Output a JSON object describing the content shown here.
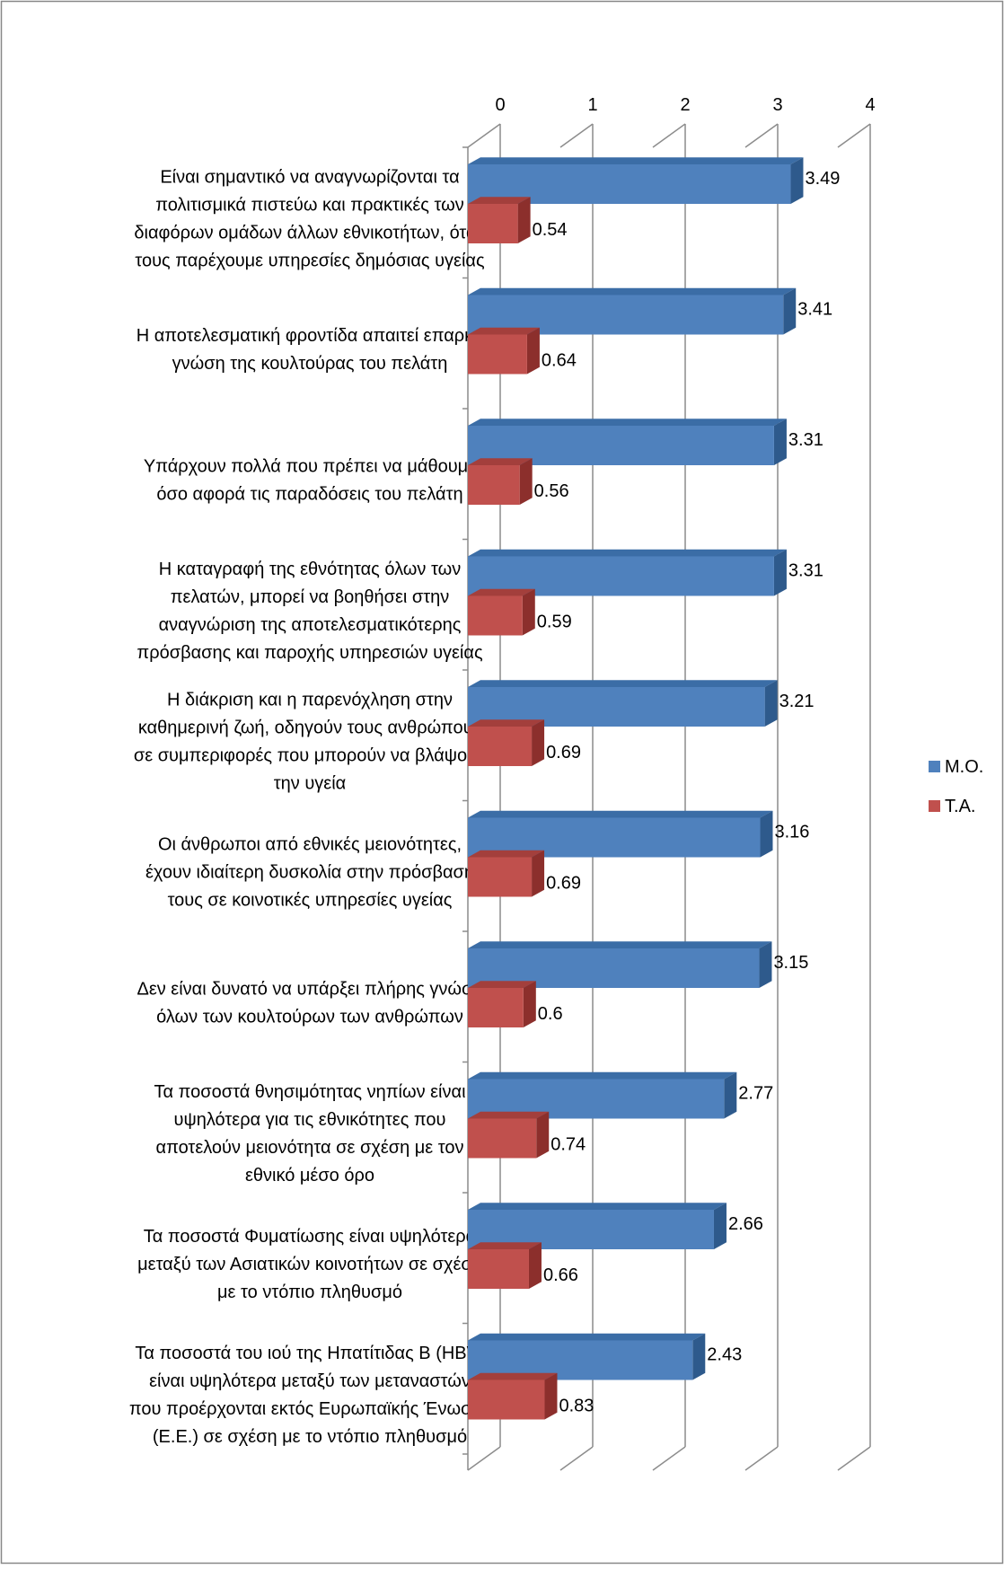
{
  "chart_data": {
    "type": "bar",
    "orientation": "horizontal",
    "style": "3d",
    "title": "",
    "xlabel": "",
    "ylabel": "",
    "xlim": [
      0,
      4
    ],
    "ticks": [
      "0",
      "1",
      "2",
      "3",
      "4"
    ],
    "grid": true,
    "legend_position": "right",
    "categories": [
      "Είναι σημαντικό να αναγνωρίζονται τα πολιτισμικά πιστεύω και πρακτικές των διαφόρων ομάδων άλλων εθνικοτήτων, όταν τους παρέχουμε υπηρεσίες δημόσιας υγείας",
      "Η αποτελεσματική φροντίδα απαιτεί επαρκή γνώση της κουλτούρας του πελάτη",
      "Υπάρχουν πολλά που πρέπει να μάθουμε όσο αφορά τις παραδόσεις του πελάτη",
      "Η καταγραφή της εθνότητας όλων των πελατών, μπορεί να βοηθήσει στην αναγνώριση της αποτελεσματικότερης πρόσβασης και παροχής υπηρεσιών υγείας",
      "Η διάκριση και η παρενόχληση στην καθημερινή ζωή, οδηγούν τους ανθρώπους σε συμπεριφορές που μπορούν να βλάψουν την υγεία",
      "Οι άνθρωποι από εθνικές μειονότητες, έχουν ιδιαίτερη δυσκολία στην πρόσβασή τους σε κοινοτικές υπηρεσίες υγείας",
      "Δεν είναι δυνατό να υπάρξει πλήρης γνώση όλων των κουλτούρων των ανθρώπων",
      "Τα ποσοστά θνησιμότητας νηπίων είναι υψηλότερα για τις εθνικότητες που αποτελούν  μειονότητα σε σχέση με τον εθνικό μέσο όρο",
      "Τα ποσοστά Φυματίωσης είναι υψηλότερα μεταξύ των Ασιατικών κοινοτήτων σε σχέση με το ντόπιο πληθυσμό",
      "Τα ποσοστά του ιού της Ηπατίτιδας Β (HBV) είναι υψηλότερα μεταξύ των μεταναστών που προέρχονται εκτός Ευρωπαϊκής Ένωσης (Ε.Ε.) σε σχέση με το ντόπιο πληθυσμό"
    ],
    "category_lines": [
      [
        "Είναι σημαντικό να αναγνωρίζονται τα",
        "πολιτισμικά πιστεύω και πρακτικές των",
        "διαφόρων ομάδων άλλων εθνικοτήτων, όταν",
        "τους παρέχουμε υπηρεσίες δημόσιας υγείας"
      ],
      [
        "Η αποτελεσματική φροντίδα απαιτεί επαρκή",
        "γνώση της κουλτούρας του πελάτη"
      ],
      [
        "Υπάρχουν πολλά που πρέπει να μάθουμε",
        "όσο αφορά τις παραδόσεις του πελάτη"
      ],
      [
        "Η καταγραφή της εθνότητας όλων των",
        "πελατών, μπορεί να βοηθήσει στην",
        "αναγνώριση της αποτελεσματικότερης",
        "πρόσβασης και παροχής υπηρεσιών υγείας"
      ],
      [
        "Η διάκριση και η παρενόχληση στην",
        "καθημερινή ζωή, οδηγούν τους ανθρώπους",
        "σε συμπεριφορές που μπορούν να βλάψουν",
        "την υγεία"
      ],
      [
        "Οι άνθρωποι από εθνικές μειονότητες,",
        "έχουν ιδιαίτερη δυσκολία στην πρόσβασή",
        "τους σε κοινοτικές υπηρεσίες υγείας"
      ],
      [
        "Δεν είναι δυνατό να υπάρξει πλήρης γνώση",
        "όλων των κουλτούρων των ανθρώπων"
      ],
      [
        "Τα ποσοστά θνησιμότητας νηπίων είναι",
        "υψηλότερα για τις εθνικότητες που",
        "αποτελούν  μειονότητα σε σχέση με τον",
        "εθνικό μέσο όρο"
      ],
      [
        "Τα ποσοστά Φυματίωσης είναι υψηλότερα",
        "μεταξύ των Ασιατικών κοινοτήτων σε σχέση",
        "με το ντόπιο πληθυσμό"
      ],
      [
        "Τα ποσοστά του ιού της Ηπατίτιδας Β (HBV)",
        "είναι υψηλότερα μεταξύ των μεταναστών",
        "που προέρχονται εκτός Ευρωπαϊκής Ένωσης",
        "(Ε.Ε.) σε σχέση με το ντόπιο πληθυσμό"
      ]
    ],
    "series": [
      {
        "name": "Μ.Ο.",
        "color": "#4F81BD",
        "dark_color": "#2E5A8C",
        "top_color": "#3B6DA6",
        "values": [
          3.49,
          3.41,
          3.31,
          3.31,
          3.21,
          3.16,
          3.15,
          2.77,
          2.66,
          2.43
        ],
        "labels": [
          "3.49",
          "3.41",
          "3.31",
          "3.31",
          "3.21",
          "3.16",
          "3.15",
          "2.77",
          "2.66",
          "2.43"
        ]
      },
      {
        "name": "Τ.Α.",
        "color": "#C0504D",
        "dark_color": "#8C2F2C",
        "top_color": "#A33F3C",
        "values": [
          0.54,
          0.64,
          0.56,
          0.59,
          0.69,
          0.69,
          0.6,
          0.74,
          0.66,
          0.83
        ],
        "labels": [
          "0.54",
          "0.64",
          "0.56",
          "0.59",
          "0.69",
          "0.69",
          "0.6",
          "0.74",
          "0.66",
          "0.83"
        ]
      }
    ]
  }
}
